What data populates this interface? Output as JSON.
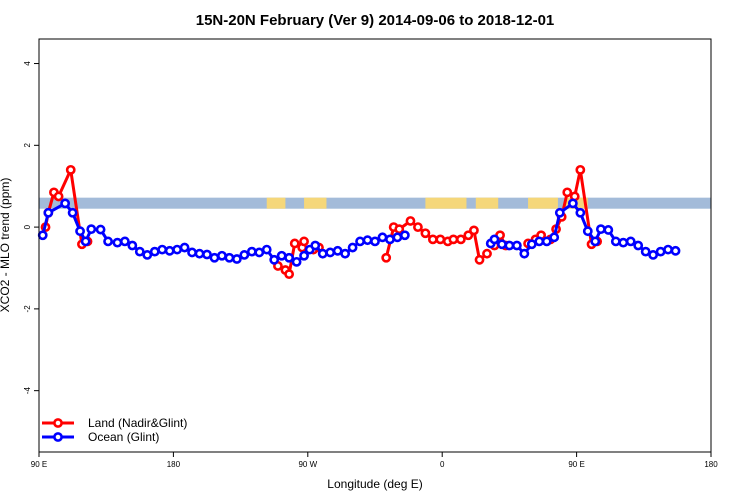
{
  "chart_data": {
    "type": "line",
    "title": "15N-20N February (Ver 9)   2014-09-06 to 2018-12-01",
    "xlabel": "Longitude (deg E)",
    "ylabel": "XCO2 - MLO trend (ppm)",
    "xlim": [
      90,
      450
    ],
    "ylim": [
      -5.5,
      4.6
    ],
    "x_ticks": [
      {
        "value": 90,
        "label": "90 E"
      },
      {
        "value": 162,
        "label": "180"
      },
      {
        "value": 234,
        "label": "90 W"
      },
      {
        "value": 306,
        "label": "0"
      },
      {
        "value": 378,
        "label": "90 E"
      },
      {
        "value": 450,
        "label": "180"
      }
    ],
    "y_ticks": [
      {
        "value": 4,
        "label": "4"
      },
      {
        "value": 2,
        "label": "2"
      },
      {
        "value": 0,
        "label": "0"
      },
      {
        "value": -2,
        "label": "-2"
      },
      {
        "value": -4,
        "label": "-4"
      }
    ],
    "band": {
      "y_min": 0.45,
      "y_max": 0.72,
      "ocean_color": "#a3bbd9",
      "land_color": "#f5d77a"
    },
    "land_segments": [
      [
        212,
        222
      ],
      [
        232,
        244
      ],
      [
        297,
        319
      ],
      [
        324,
        336
      ],
      [
        352,
        368
      ],
      [
        372,
        384
      ]
    ],
    "legend_position": "bottom-left",
    "series": [
      {
        "name": "Land (Nadir&Glint)",
        "color": "#ff0000",
        "segments": [
          [
            [
              93.5,
              0.0
            ],
            [
              95,
              0.35
            ],
            [
              98,
              0.85
            ],
            [
              100.5,
              0.75
            ],
            [
              107,
              1.4
            ],
            [
              113,
              -0.42
            ],
            [
              116,
              -0.35
            ]
          ],
          [
            [
              218,
              -0.95
            ],
            [
              222,
              -1.05
            ],
            [
              224,
              -1.15
            ],
            [
              227,
              -0.4
            ],
            [
              231,
              -0.5
            ],
            [
              232,
              -0.35
            ]
          ],
          [
            [
              237,
              -0.55
            ],
            [
              240,
              -0.5
            ]
          ],
          [
            [
              276,
              -0.75
            ],
            [
              280,
              0.0
            ],
            [
              283,
              -0.05
            ],
            [
              289,
              0.15
            ],
            [
              293,
              0.0
            ],
            [
              297,
              -0.15
            ],
            [
              301,
              -0.3
            ],
            [
              305,
              -0.3
            ],
            [
              309,
              -0.35
            ],
            [
              312,
              -0.3
            ],
            [
              316,
              -0.3
            ],
            [
              320,
              -0.2
            ],
            [
              323,
              -0.08
            ],
            [
              326,
              -0.8
            ],
            [
              330,
              -0.65
            ]
          ],
          [
            [
              334,
              -0.45
            ],
            [
              337,
              -0.2
            ],
            [
              340,
              -0.45
            ]
          ],
          [
            [
              352,
              -0.4
            ],
            [
              356,
              -0.3
            ],
            [
              359,
              -0.2
            ]
          ],
          [
            [
              364,
              -0.3
            ],
            [
              367,
              -0.05
            ],
            [
              370,
              0.25
            ],
            [
              373,
              0.85
            ],
            [
              377,
              0.75
            ],
            [
              380,
              1.4
            ],
            [
              386,
              -0.42
            ],
            [
              389,
              -0.35
            ]
          ]
        ]
      },
      {
        "name": "Ocean (Glint)",
        "color": "#0000ff",
        "segments": [
          [
            [
              92,
              -0.2
            ],
            [
              95,
              0.35
            ],
            [
              104,
              0.58
            ],
            [
              108,
              0.35
            ],
            [
              112,
              -0.1
            ],
            [
              115,
              -0.35
            ],
            [
              118,
              -0.05
            ],
            [
              123,
              -0.06
            ],
            [
              127,
              -0.35
            ],
            [
              132,
              -0.38
            ],
            [
              136,
              -0.35
            ],
            [
              140,
              -0.45
            ],
            [
              144,
              -0.6
            ],
            [
              148,
              -0.68
            ],
            [
              152,
              -0.6
            ],
            [
              156,
              -0.55
            ],
            [
              160,
              -0.58
            ],
            [
              164,
              -0.55
            ],
            [
              168,
              -0.5
            ],
            [
              172,
              -0.62
            ],
            [
              176,
              -0.65
            ],
            [
              180,
              -0.67
            ],
            [
              184,
              -0.75
            ],
            [
              188,
              -0.7
            ],
            [
              192,
              -0.75
            ],
            [
              196,
              -0.78
            ],
            [
              200,
              -0.68
            ],
            [
              204,
              -0.6
            ],
            [
              208,
              -0.62
            ],
            [
              212,
              -0.55
            ],
            [
              216,
              -0.8
            ],
            [
              220,
              -0.7
            ],
            [
              224,
              -0.75
            ],
            [
              228,
              -0.85
            ],
            [
              232,
              -0.7
            ],
            [
              235,
              -0.55
            ],
            [
              238,
              -0.45
            ],
            [
              242,
              -0.65
            ],
            [
              246,
              -0.62
            ],
            [
              250,
              -0.58
            ],
            [
              254,
              -0.65
            ],
            [
              258,
              -0.5
            ],
            [
              262,
              -0.35
            ],
            [
              266,
              -0.32
            ],
            [
              270,
              -0.35
            ],
            [
              274,
              -0.25
            ],
            [
              278,
              -0.3
            ],
            [
              282,
              -0.25
            ],
            [
              286,
              -0.2
            ]
          ],
          [
            [
              332,
              -0.4
            ],
            [
              334,
              -0.3
            ],
            [
              338,
              -0.42
            ],
            [
              342,
              -0.45
            ],
            [
              346,
              -0.45
            ],
            [
              350,
              -0.65
            ],
            [
              354,
              -0.42
            ],
            [
              358,
              -0.35
            ],
            [
              362,
              -0.35
            ],
            [
              366,
              -0.25
            ],
            [
              369,
              0.35
            ],
            [
              376,
              0.58
            ],
            [
              380,
              0.35
            ],
            [
              384,
              -0.1
            ],
            [
              388,
              -0.35
            ],
            [
              391,
              -0.05
            ],
            [
              395,
              -0.07
            ],
            [
              399,
              -0.35
            ],
            [
              403,
              -0.38
            ],
            [
              407,
              -0.35
            ],
            [
              411,
              -0.45
            ],
            [
              415,
              -0.6
            ],
            [
              419,
              -0.68
            ],
            [
              423,
              -0.6
            ],
            [
              427,
              -0.55
            ],
            [
              431,
              -0.58
            ]
          ]
        ]
      }
    ]
  }
}
